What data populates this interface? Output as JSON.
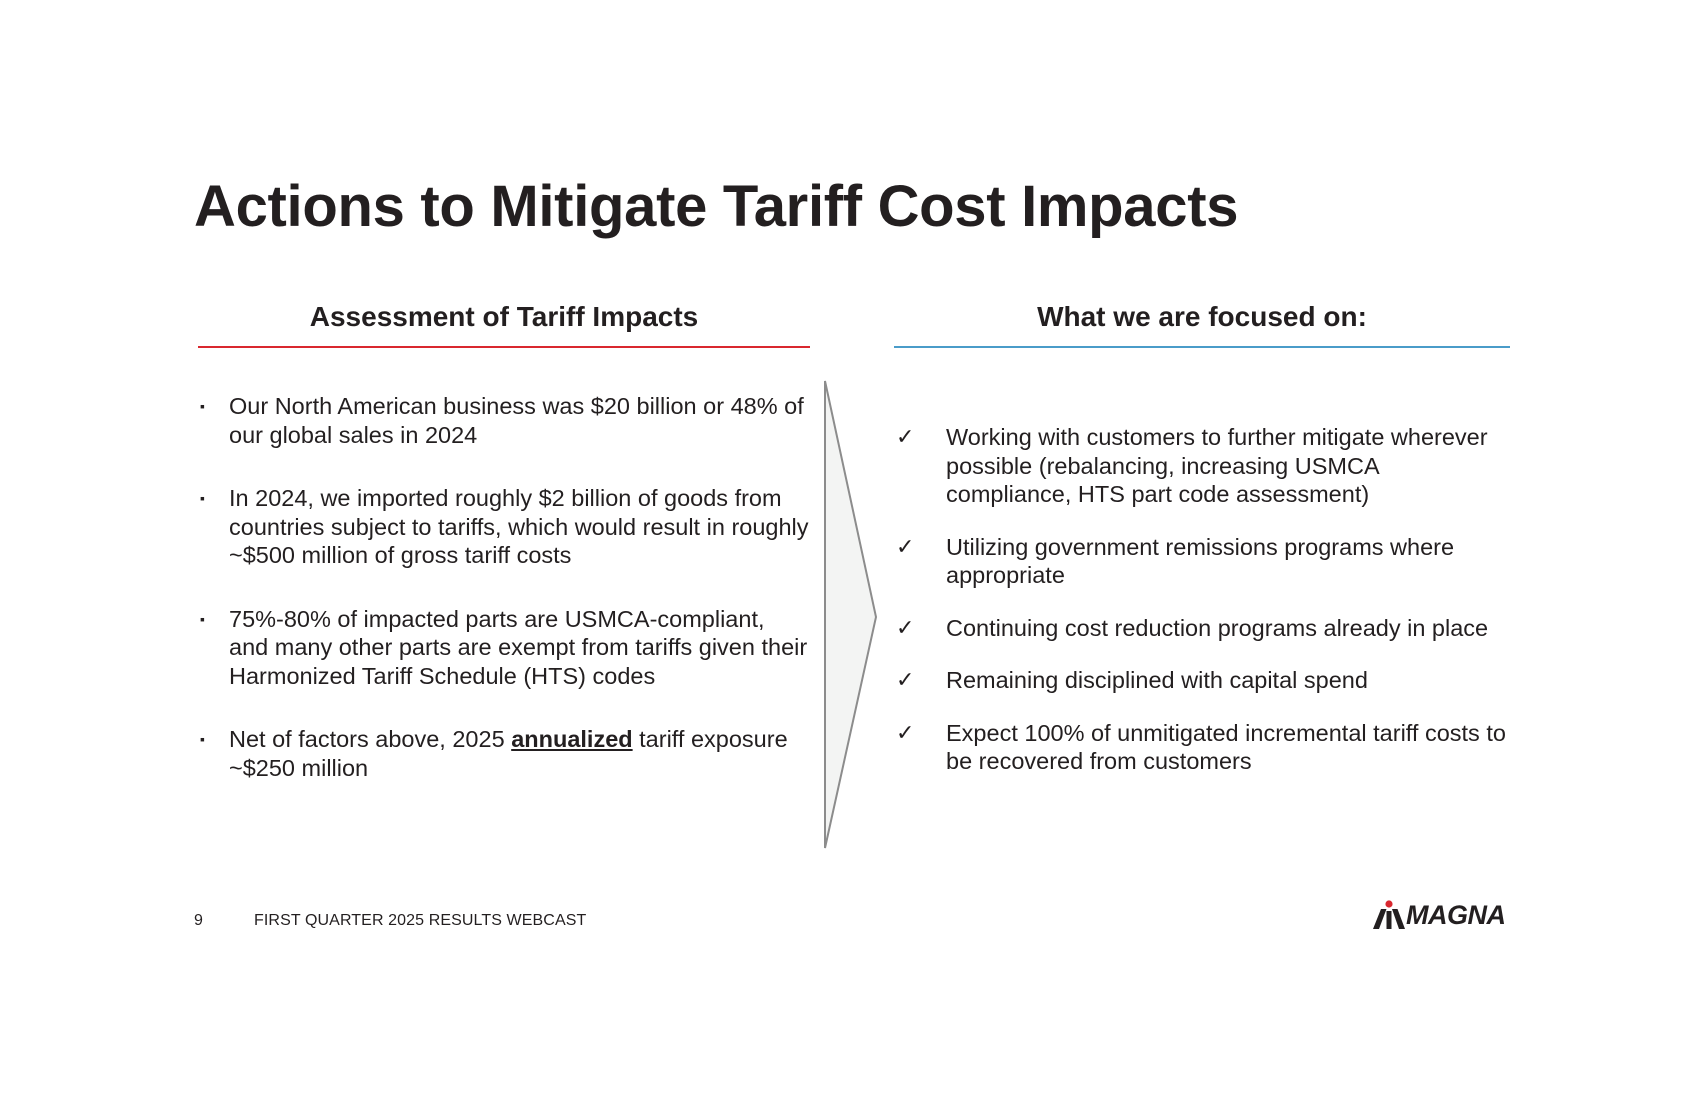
{
  "slide": {
    "title": "Actions to Mitigate Tariff Cost Impacts"
  },
  "left": {
    "header": "Assessment of Tariff Impacts",
    "rule_color": "#d9282f",
    "bullet_icon": "square-bullet-icon",
    "bullet_glyph": "▪",
    "items": [
      {
        "text": "Our North American business was $20 billion or 48% of our global sales in 2024"
      },
      {
        "text": "In 2024, we imported roughly $2 billion of goods from countries subject to tariffs, which would result in roughly ~$500 million of gross tariff costs"
      },
      {
        "text": "75%-80% of impacted parts are USMCA-compliant, and many other parts are exempt from tariffs given their Harmonized Tariff Schedule (HTS) codes"
      },
      {
        "pre": "Net of factors above, 2025 ",
        "emph": "annualized",
        "post": " tariff exposure ~$250 million"
      }
    ]
  },
  "right": {
    "header": "What we are focused on:",
    "rule_color": "#4a9cc9",
    "bullet_icon": "checkmark-icon",
    "bullet_glyph": "✓",
    "items": [
      {
        "text": "Working with customers to further mitigate wherever possible (rebalancing, increasing USMCA compliance, HTS part code assessment)"
      },
      {
        "text": "Utilizing government remissions programs where appropriate"
      },
      {
        "text": "Continuing cost reduction programs already in place"
      },
      {
        "text": "Remaining disciplined with capital spend"
      },
      {
        "text": "Expect 100% of unmitigated incremental tariff costs to be recovered from customers"
      }
    ]
  },
  "divider_icon": "chevron-right-divider-icon",
  "footer": {
    "page_number": "9",
    "text": "FIRST QUARTER 2025 RESULTS WEBCAST"
  },
  "logo": {
    "text": "MAGNA",
    "icon": "magna-logo-icon",
    "accent_color": "#d9282f",
    "text_color": "#231f20"
  }
}
